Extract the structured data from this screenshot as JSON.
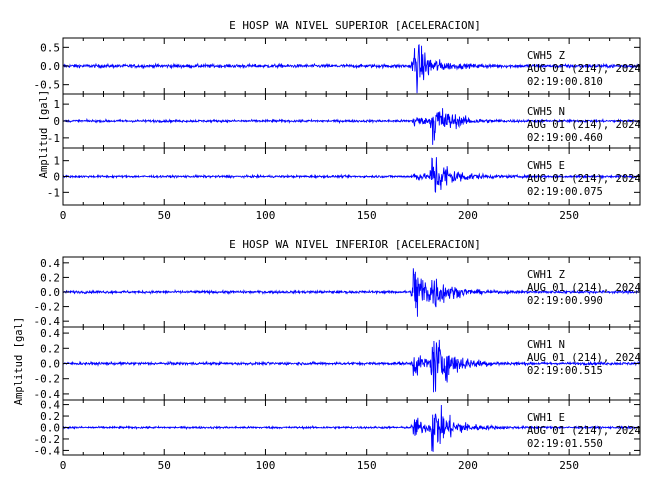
{
  "chart_data": [
    {
      "type": "line",
      "title": "E HOSP WA NIVEL SUPERIOR [ACELERACION]",
      "ylabel": "Amplitud [gal]",
      "xlim": [
        0,
        285
      ],
      "x_ticks": [
        0,
        50,
        100,
        150,
        200,
        250
      ],
      "traces": [
        {
          "station": "CWH5",
          "component": "Z",
          "date": "AUG 01 (214), 2024",
          "time": "02:19:00.810",
          "ylim": [
            -0.75,
            0.75
          ],
          "y_ticks": [
            0.5,
            0.0,
            -0.5
          ],
          "y_tick_labels": [
            "0.5",
            "0.0",
            "-0.5"
          ],
          "noise": 0.04,
          "events": [
            {
              "t": 173,
              "amp": 0.7,
              "decay": 7
            }
          ]
        },
        {
          "station": "CWH5",
          "component": "N",
          "date": "AUG 01 (214), 2024",
          "time": "02:19:00.460",
          "ylim": [
            -1.6,
            1.6
          ],
          "y_ticks": [
            1,
            0,
            -1
          ],
          "y_tick_labels": [
            "1",
            "0",
            "-1"
          ],
          "noise": 0.06,
          "events": [
            {
              "t": 173,
              "amp": 0.35,
              "decay": 5
            },
            {
              "t": 182,
              "amp": 1.3,
              "decay": 8
            }
          ]
        },
        {
          "station": "CWH5",
          "component": "E",
          "date": "AUG 01 (214), 2024",
          "time": "02:19:00.075",
          "ylim": [
            -1.8,
            1.8
          ],
          "y_ticks": [
            1,
            0,
            -1
          ],
          "y_tick_labels": [
            "1",
            "0",
            "-1"
          ],
          "noise": 0.06,
          "events": [
            {
              "t": 173,
              "amp": 0.3,
              "decay": 5
            },
            {
              "t": 182,
              "amp": 1.6,
              "decay": 8
            }
          ]
        }
      ]
    },
    {
      "type": "line",
      "title": "E HOSP WA NIVEL INFERIOR [ACELERACION]",
      "ylabel": "Amplitud [gal]",
      "xlim": [
        0,
        285
      ],
      "x_ticks": [
        0,
        50,
        100,
        150,
        200,
        250
      ],
      "traces": [
        {
          "station": "CWH1",
          "component": "Z",
          "date": "AUG 01 (214), 2024",
          "time": "02:19:00.990",
          "ylim": [
            -0.48,
            0.48
          ],
          "y_ticks": [
            0.4,
            0.2,
            0.0,
            -0.2,
            -0.4
          ],
          "y_tick_labels": [
            "0.4",
            "0.2",
            "0.0",
            "-0.2",
            "-0.4"
          ],
          "noise": 0.015,
          "events": [
            {
              "t": 173,
              "amp": 0.42,
              "decay": 7
            },
            {
              "t": 182,
              "amp": 0.15,
              "decay": 8
            }
          ]
        },
        {
          "station": "CWH1",
          "component": "N",
          "date": "AUG 01 (214), 2024",
          "time": "02:19:00.515",
          "ylim": [
            -0.48,
            0.48
          ],
          "y_ticks": [
            0.4,
            0.2,
            0.0,
            -0.2,
            -0.4
          ],
          "y_tick_labels": [
            "0.4",
            "0.2",
            "0.0",
            "-0.2",
            "-0.4"
          ],
          "noise": 0.015,
          "events": [
            {
              "t": 173,
              "amp": 0.18,
              "decay": 5
            },
            {
              "t": 182,
              "amp": 0.38,
              "decay": 9
            }
          ]
        },
        {
          "station": "CWH1",
          "component": "E",
          "date": "AUG 01 (214), 2024",
          "time": "02:19:01.550",
          "ylim": [
            -0.48,
            0.48
          ],
          "y_ticks": [
            0.4,
            0.2,
            0.0,
            -0.2,
            -0.4
          ],
          "y_tick_labels": [
            "0.4",
            "0.2",
            "0.0",
            "-0.2",
            "-0.4"
          ],
          "noise": 0.015,
          "events": [
            {
              "t": 173,
              "amp": 0.2,
              "decay": 5
            },
            {
              "t": 182,
              "amp": 0.42,
              "decay": 9
            }
          ]
        }
      ]
    }
  ],
  "colors": {
    "trace": "#0000ff",
    "axes": "#000000",
    "background": "#ffffff"
  }
}
